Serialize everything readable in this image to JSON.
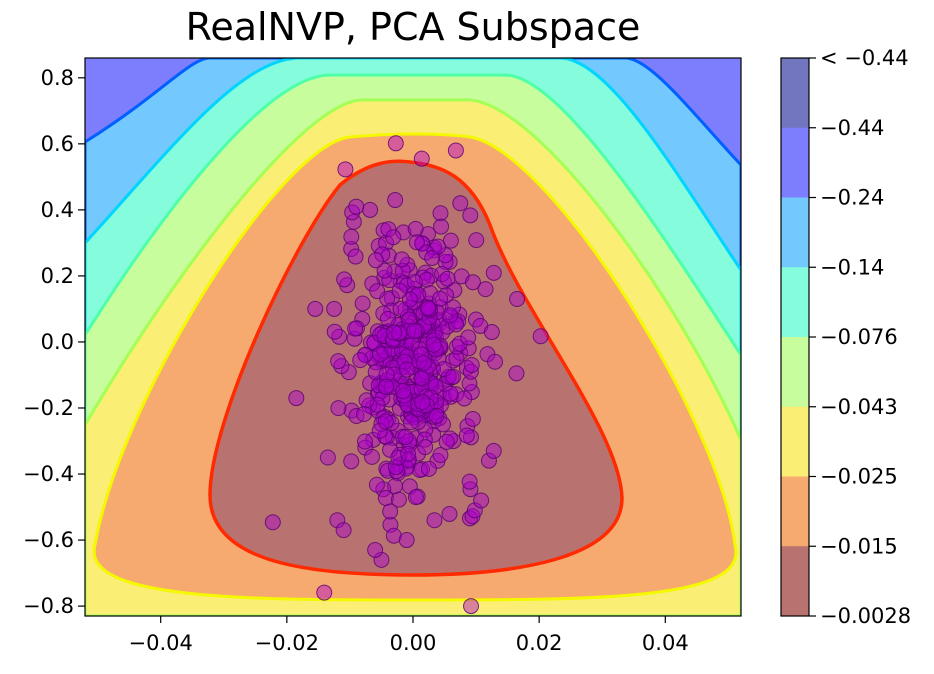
{
  "chart_data": {
    "type": "contour",
    "title": "RealNVP, PCA Subspace",
    "xlabel": "",
    "ylabel": "",
    "xlim": [
      -0.052,
      0.052
    ],
    "ylim": [
      -0.83,
      0.86
    ],
    "xticks": [
      -0.04,
      -0.02,
      0.0,
      0.02,
      0.04
    ],
    "xtick_labels": [
      "−0.04",
      "−0.02",
      "0.00",
      "0.02",
      "0.04"
    ],
    "yticks": [
      -0.8,
      -0.6,
      -0.4,
      -0.2,
      0.0,
      0.2,
      0.4,
      0.6,
      0.8
    ],
    "ytick_labels": [
      "−0.8",
      "−0.6",
      "−0.4",
      "−0.2",
      "0.0",
      "0.2",
      "0.4",
      "0.6",
      "0.8"
    ],
    "colorbar": {
      "tick_labels": [
        "< −0.44",
        "−0.44",
        "−0.24",
        "−0.14",
        "−0.076",
        "−0.043",
        "−0.025",
        "−0.015",
        "−0.0028"
      ],
      "bands_top_to_bottom": [
        "#7276bf",
        "#7c7efd",
        "#73c9fd",
        "#85fcdb",
        "#c8fd9d",
        "#fbee75",
        "#f7aa70",
        "#b87370"
      ],
      "line_colors_inner_to_outer": [
        "#ff2a00",
        "#ffa300",
        "#f4f800",
        "#a3ff54",
        "#4dffaa",
        "#00d4ff",
        "#0060ff"
      ]
    },
    "contour_regions": {
      "note_levels_inner_to_outer": [
        "-0.0028",
        "-0.015",
        "-0.025",
        "-0.043",
        "-0.076",
        "-0.14",
        "-0.24",
        "-0.44"
      ]
    },
    "scatter": {
      "color": "#aa00cc",
      "points": [
        [
          0.0068,
          0.58
        ],
        [
          0.0092,
          -0.8
        ],
        [
          0.0165,
          0.13
        ],
        [
          -0.0185,
          -0.17
        ],
        [
          -0.009,
          0.41
        ],
        [
          0.0075,
          0.42
        ],
        [
          -0.0155,
          0.1
        ],
        [
          -0.012,
          -0.54
        ],
        [
          -0.011,
          -0.57
        ],
        [
          -0.005,
          -0.66
        ],
        [
          -0.006,
          -0.63
        ],
        [
          -0.001,
          -0.6
        ],
        [
          0.0098,
          -0.51
        ],
        [
          0.0108,
          -0.48
        ],
        [
          0.0128,
          -0.33
        ],
        [
          0.013,
          -0.06
        ],
        [
          0.0125,
          0.03
        ],
        [
          -0.0125,
          0.1
        ],
        [
          -0.0135,
          -0.35
        ],
        [
          0.0115,
          0.16
        ]
      ],
      "cloud": {
        "n": 430,
        "x_mean": 0.0,
        "x_sd": 0.0052,
        "y_mean": -0.06,
        "y_sd": 0.2
      }
    }
  }
}
